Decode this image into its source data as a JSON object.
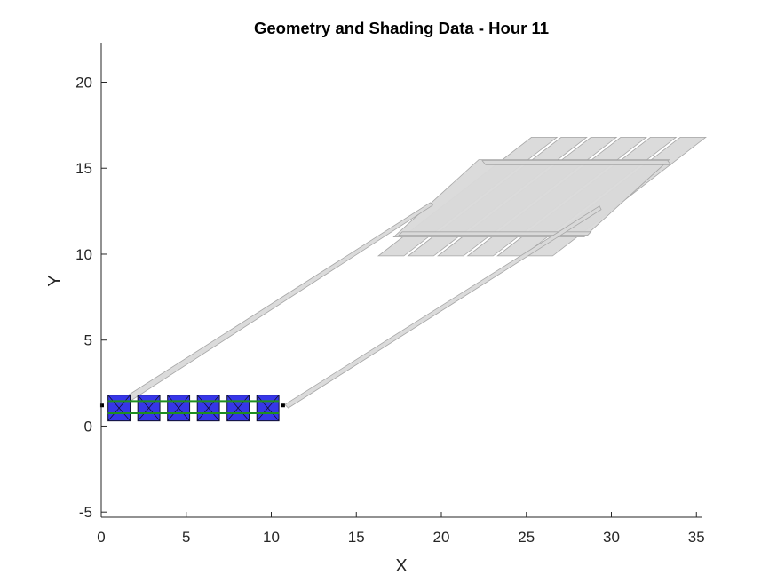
{
  "chart_data": {
    "type": "scatter",
    "title": "Geometry and Shading Data - Hour 11",
    "xlabel": "X",
    "ylabel": "Y",
    "xlim": [
      0,
      35.3
    ],
    "ylim": [
      -5.3,
      22.3
    ],
    "xticks": [
      0,
      5,
      10,
      15,
      20,
      25,
      30,
      35
    ],
    "yticks": [
      -5,
      0,
      5,
      10,
      15,
      20
    ],
    "grid": false,
    "legend": "none",
    "colors": {
      "module_fill": "#3636e8",
      "module_edge": "#101030",
      "torque_tube": "#1f8f1f",
      "shadow_fill": "#d9d9d9",
      "shadow_edge": "#a6a6a6",
      "axis": "#262626"
    },
    "modules": [
      {
        "x0": 0.4,
        "x1": 1.7,
        "y0": 0.3,
        "y1": 1.8
      },
      {
        "x0": 2.15,
        "x1": 3.45,
        "y0": 0.3,
        "y1": 1.8
      },
      {
        "x0": 3.9,
        "x1": 5.2,
        "y0": 0.3,
        "y1": 1.8
      },
      {
        "x0": 5.65,
        "x1": 6.95,
        "y0": 0.3,
        "y1": 1.8
      },
      {
        "x0": 7.4,
        "x1": 8.7,
        "y0": 0.3,
        "y1": 1.8
      },
      {
        "x0": 9.15,
        "x1": 10.45,
        "y0": 0.3,
        "y1": 1.8
      }
    ],
    "torque_tube_y": [
      0.75,
      1.45
    ],
    "posts": [
      {
        "x": 0.05,
        "y": 1.2
      },
      {
        "x": 10.7,
        "y": 1.2
      }
    ],
    "shading_polygons": [
      {
        "name": "shadow-strip-1",
        "points": [
          [
            16.3,
            9.9
          ],
          [
            17.8,
            9.9
          ],
          [
            26.8,
            16.8
          ],
          [
            25.3,
            16.8
          ]
        ]
      },
      {
        "name": "shadow-strip-2",
        "points": [
          [
            18.05,
            9.9
          ],
          [
            19.55,
            9.9
          ],
          [
            28.55,
            16.8
          ],
          [
            27.05,
            16.8
          ]
        ]
      },
      {
        "name": "shadow-strip-3",
        "points": [
          [
            19.8,
            9.9
          ],
          [
            21.3,
            9.9
          ],
          [
            30.3,
            16.8
          ],
          [
            28.8,
            16.8
          ]
        ]
      },
      {
        "name": "shadow-strip-4",
        "points": [
          [
            21.55,
            9.9
          ],
          [
            23.05,
            9.9
          ],
          [
            32.05,
            16.8
          ],
          [
            30.55,
            16.8
          ]
        ]
      },
      {
        "name": "shadow-strip-5",
        "points": [
          [
            23.3,
            9.9
          ],
          [
            24.8,
            9.9
          ],
          [
            33.8,
            16.8
          ],
          [
            32.3,
            16.8
          ]
        ]
      },
      {
        "name": "shadow-strip-6",
        "points": [
          [
            25.05,
            9.9
          ],
          [
            26.55,
            9.9
          ],
          [
            35.55,
            16.8
          ],
          [
            34.05,
            16.8
          ]
        ]
      },
      {
        "name": "shadow-tube-band",
        "points": [
          [
            17.2,
            11.0
          ],
          [
            28.4,
            11.0
          ],
          [
            33.4,
            15.5
          ],
          [
            22.2,
            15.5
          ]
        ]
      },
      {
        "name": "shadow-tube-lower",
        "points": [
          [
            17.5,
            11.1
          ],
          [
            28.6,
            11.1
          ],
          [
            28.8,
            11.3
          ],
          [
            17.7,
            11.3
          ]
        ]
      },
      {
        "name": "shadow-tube-upper",
        "points": [
          [
            22.6,
            15.2
          ],
          [
            33.5,
            15.2
          ],
          [
            33.3,
            15.45
          ],
          [
            22.4,
            15.45
          ]
        ]
      },
      {
        "name": "post-shadow-left",
        "points": [
          [
            0.8,
            1.3
          ],
          [
            1.0,
            1.0
          ],
          [
            19.5,
            12.85
          ],
          [
            19.35,
            13.0
          ]
        ]
      },
      {
        "name": "post-shadow-right",
        "points": [
          [
            10.8,
            1.25
          ],
          [
            11.0,
            1.05
          ],
          [
            29.4,
            12.6
          ],
          [
            29.3,
            12.8
          ]
        ]
      }
    ]
  }
}
